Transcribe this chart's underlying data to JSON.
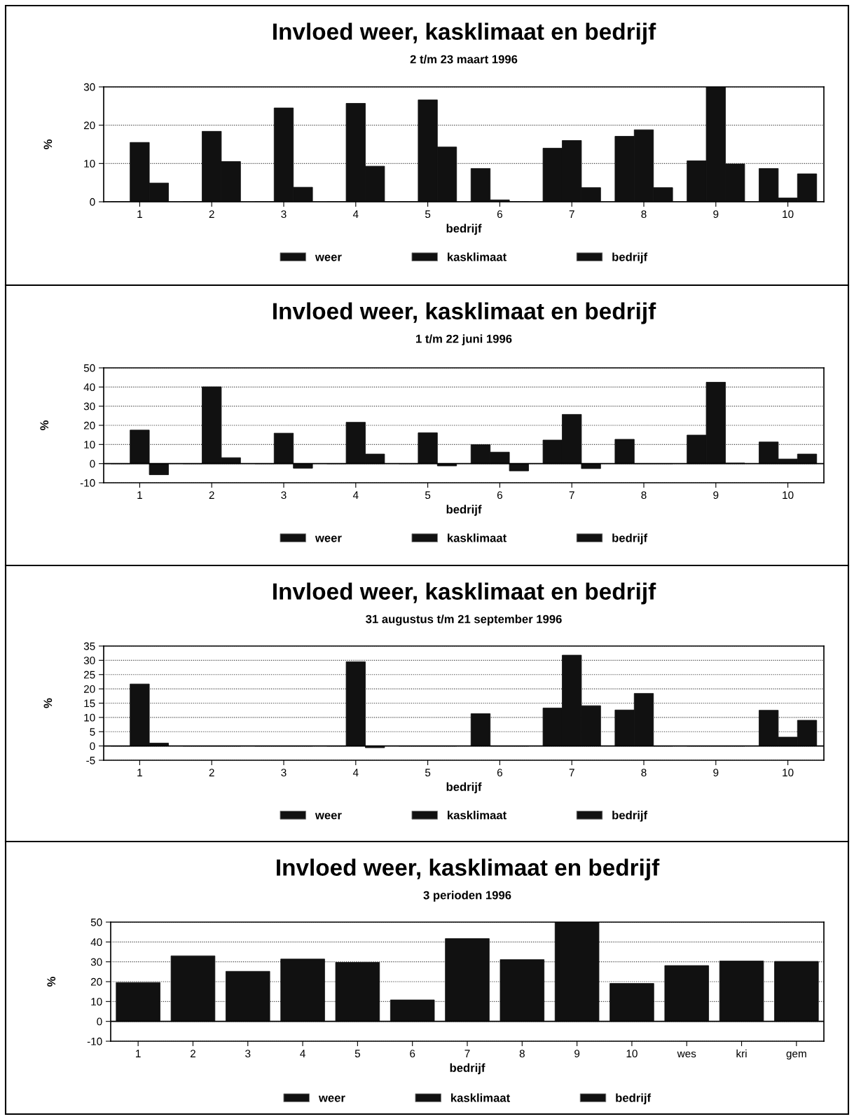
{
  "chart_data": [
    {
      "type": "bar",
      "title": "Invloed weer, kasklimaat en bedrijf",
      "subtitle": "2 t/m 23 maart 1996",
      "xlabel": "bedrijf",
      "ylabel": "%",
      "categories": [
        "1",
        "2",
        "3",
        "4",
        "5",
        "6",
        "7",
        "8",
        "9",
        "10"
      ],
      "series": [
        {
          "name": "weer",
          "color": "#111111",
          "values": [
            0,
            0,
            0,
            0,
            0,
            8.7,
            14.0,
            17.1,
            10.7,
            8.7
          ]
        },
        {
          "name": "kasklimaat",
          "color": "#111111",
          "values": [
            15.5,
            18.4,
            24.5,
            25.7,
            26.6,
            0.5,
            16.0,
            18.8,
            30,
            1
          ]
        },
        {
          "name": "bedrijf",
          "color": "#111111",
          "values": [
            4.9,
            10.5,
            3.8,
            9.3,
            14.3,
            0,
            3.7,
            3.7,
            9.9,
            7.3
          ]
        }
      ],
      "ylim": [
        0,
        30
      ],
      "yticks": [
        0,
        10,
        20,
        30
      ],
      "grid": "y",
      "legend": "bottom"
    },
    {
      "type": "bar",
      "title": "Invloed weer, kasklimaat en bedrijf",
      "subtitle": "1 t/m 22 juni 1996",
      "xlabel": "bedrijf",
      "ylabel": "%",
      "categories": [
        "1",
        "2",
        "3",
        "4",
        "5",
        "6",
        "7",
        "8",
        "9",
        "10"
      ],
      "series": [
        {
          "name": "weer",
          "color": "#111111",
          "values": [
            0,
            0,
            0,
            0,
            0,
            9.9,
            12.3,
            12.7,
            14.9,
            11.3
          ]
        },
        {
          "name": "kasklimaat",
          "color": "#111111",
          "values": [
            17.5,
            40.1,
            15.9,
            21.6,
            16.1,
            6.0,
            25.7,
            0,
            42.5,
            2.4
          ]
        },
        {
          "name": "bedrijf",
          "color": "#111111",
          "values": [
            -5.8,
            3.1,
            -2.4,
            5.0,
            -1.2,
            -3.8,
            -2.6,
            0,
            0.3,
            5.0
          ]
        }
      ],
      "ylim": [
        -10,
        50
      ],
      "yticks": [
        -10,
        0,
        10,
        20,
        30,
        40,
        50
      ],
      "grid": "y",
      "legend": "bottom"
    },
    {
      "type": "bar",
      "title": "Invloed weer, kasklimaat en bedrijf",
      "subtitle": "31 augustus t/m 21 september 1996",
      "xlabel": "bedrijf",
      "ylabel": "%",
      "categories": [
        "1",
        "2",
        "3",
        "4",
        "5",
        "6",
        "7",
        "8",
        "9",
        "10"
      ],
      "series": [
        {
          "name": "weer",
          "color": "#111111",
          "values": [
            0,
            0,
            0,
            0,
            0,
            11.3,
            13.3,
            12.6,
            0,
            12.5
          ]
        },
        {
          "name": "kasklimaat",
          "color": "#111111",
          "values": [
            21.7,
            0,
            0,
            29.5,
            0,
            0,
            31.8,
            18.4,
            0,
            3.1
          ]
        },
        {
          "name": "bedrijf",
          "color": "#111111",
          "values": [
            1.0,
            0,
            0,
            -0.6,
            0,
            0,
            14.1,
            0,
            0,
            9.0
          ]
        }
      ],
      "ylim": [
        -5,
        35
      ],
      "yticks": [
        -5,
        0,
        5,
        10,
        15,
        20,
        25,
        30,
        35
      ],
      "grid": "y",
      "legend": "bottom"
    },
    {
      "type": "bar",
      "title": "Invloed weer, kasklimaat en bedrijf",
      "subtitle": "3 perioden 1996",
      "xlabel": "bedrijf",
      "ylabel": "%",
      "stacked": true,
      "categories": [
        "1",
        "2",
        "3",
        "4",
        "5",
        "6",
        "7",
        "8",
        "9",
        "10",
        "wes",
        "kri",
        "gem"
      ],
      "series": [
        {
          "name": "weer",
          "color": "#111111",
          "values": [
            null,
            null,
            null,
            null,
            null,
            null,
            null,
            null,
            null,
            null,
            null,
            null,
            null
          ]
        },
        {
          "name": "kasklimaat",
          "color": "#111111",
          "values": [
            null,
            null,
            null,
            null,
            null,
            null,
            null,
            null,
            null,
            null,
            null,
            null,
            null
          ]
        },
        {
          "name": "bedrijf",
          "color": "#111111",
          "values": [
            19.6,
            33.0,
            25.2,
            31.4,
            29.7,
            10.8,
            41.7,
            31.1,
            50,
            19.1,
            28.1,
            30.4,
            30.2
          ]
        }
      ],
      "ylim": [
        -10,
        50
      ],
      "yticks": [
        -10,
        0,
        10,
        20,
        30,
        40,
        50
      ],
      "grid": "y",
      "legend": "bottom"
    }
  ]
}
